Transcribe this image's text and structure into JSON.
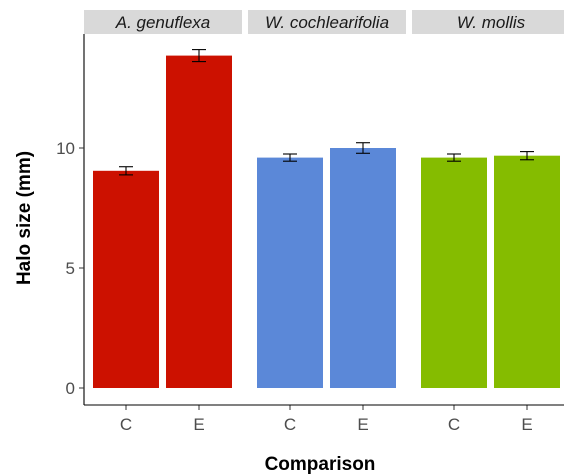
{
  "chart_data": {
    "type": "bar",
    "xlabel": "Comparison",
    "ylabel": "Halo size (mm)",
    "ylim": [
      0,
      14.8
    ],
    "yticks": [
      0,
      5,
      10
    ],
    "grid": false,
    "facets": [
      {
        "label": "A. genuflexa",
        "color": "#CC1100",
        "categories": [
          "C",
          "E"
        ],
        "values": [
          9.05,
          13.85
        ],
        "error_low": [
          8.88,
          13.6
        ],
        "error_high": [
          9.22,
          14.1
        ]
      },
      {
        "label": "W. cochlearifolia",
        "color": "#5B88D8",
        "categories": [
          "C",
          "E"
        ],
        "values": [
          9.6,
          10.0
        ],
        "error_low": [
          9.45,
          9.78
        ],
        "error_high": [
          9.75,
          10.22
        ]
      },
      {
        "label": "W. mollis",
        "color": "#85BC00",
        "categories": [
          "C",
          "E"
        ],
        "values": [
          9.6,
          9.68
        ],
        "error_low": [
          9.45,
          9.51
        ],
        "error_high": [
          9.75,
          9.85
        ]
      }
    ]
  }
}
